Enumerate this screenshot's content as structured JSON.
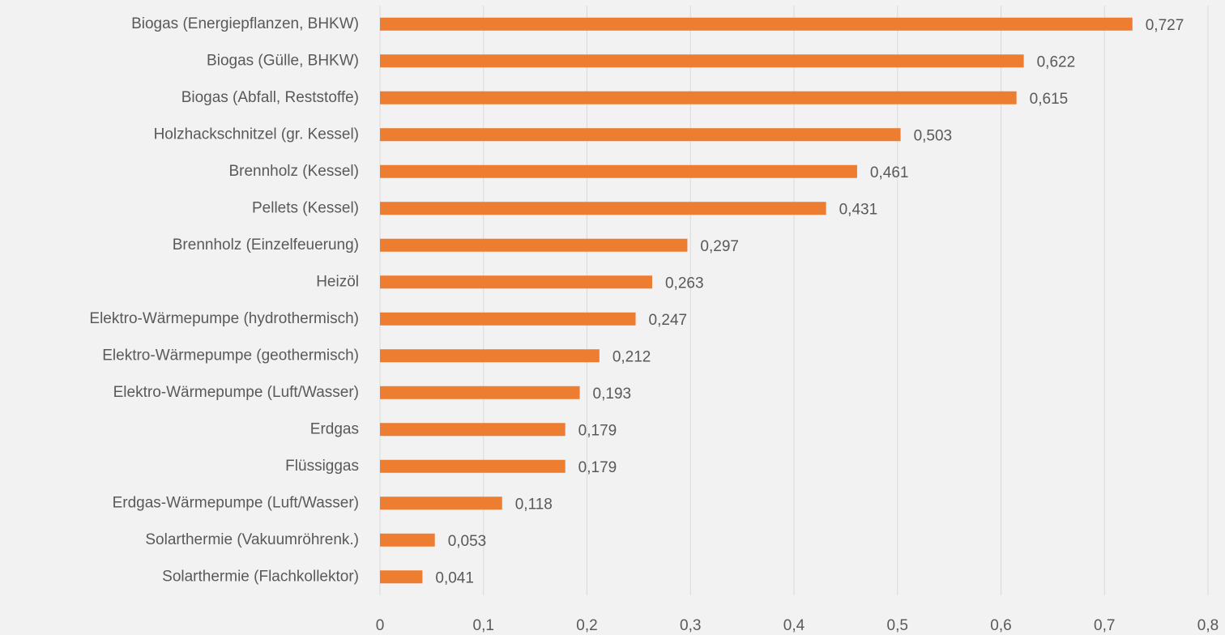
{
  "chart_data": {
    "type": "barh",
    "categories": [
      "Biogas (Energiepflanzen, BHKW)",
      "Biogas (Gülle, BHKW)",
      "Biogas (Abfall, Reststoffe)",
      "Holzhackschnitzel (gr. Kessel)",
      "Brennholz (Kessel)",
      "Pellets (Kessel)",
      "Brennholz (Einzelfeuerung)",
      "Heizöl",
      "Elektro-Wärmepumpe (hydrothermisch)",
      "Elektro-Wärmepumpe (geothermisch)",
      "Elektro-Wärmepumpe (Luft/Wasser)",
      "Erdgas",
      "Flüssiggas",
      "Erdgas-Wärmepumpe (Luft/Wasser)",
      "Solarthermie (Vakuumröhrenk.)",
      "Solarthermie (Flachkollektor)"
    ],
    "values": [
      0.727,
      0.622,
      0.615,
      0.503,
      0.461,
      0.431,
      0.297,
      0.263,
      0.247,
      0.212,
      0.193,
      0.179,
      0.179,
      0.118,
      0.053,
      0.041
    ],
    "value_labels": [
      "0,727",
      "0,622",
      "0,615",
      "0,503",
      "0,461",
      "0,431",
      "0,297",
      "0,263",
      "0,247",
      "0,212",
      "0,193",
      "0,179",
      "0,179",
      "0,118",
      "0,053",
      "0,041"
    ],
    "color": "#ed7d31",
    "xlim": [
      0,
      0.8
    ],
    "xticks": [
      0,
      {
        "value": 0.1,
        "label": "0,1"
      },
      {
        "value": 0.2,
        "label": "0,2"
      },
      {
        "value": 0.3,
        "label": "0,3"
      },
      {
        "value": 0.4,
        "label": "0,4"
      },
      {
        "value": 0.5,
        "label": "0,5"
      },
      {
        "value": 0.6,
        "label": "0,6"
      },
      {
        "value": 0.7,
        "label": "0,7"
      },
      {
        "value": 0.8,
        "label": "0,8"
      }
    ],
    "grid": true
  }
}
